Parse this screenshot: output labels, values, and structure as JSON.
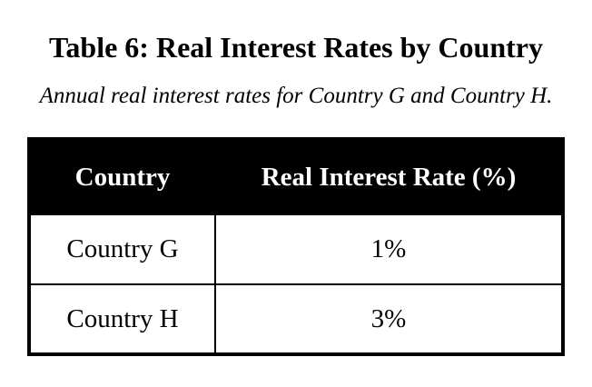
{
  "document": {
    "title": "Table 6: Real Interest Rates by Country",
    "subtitle": "Annual real interest rates for Country G and Country H."
  },
  "table": {
    "headers": [
      "Country",
      "Real Interest Rate (%)"
    ],
    "rows": [
      [
        "Country G",
        "1%"
      ],
      [
        "Country H",
        "3%"
      ]
    ]
  },
  "colors": {
    "background": "#ffffff",
    "text": "#000000",
    "header_background": "#000000",
    "header_text": "#ffffff",
    "border": "#000000"
  },
  "chart_data": {
    "type": "table",
    "title": "Table 6: Real Interest Rates by Country",
    "subtitle": "Annual real interest rates for Country G and Country H.",
    "columns": [
      "Country",
      "Real Interest Rate (%)"
    ],
    "rows": [
      [
        "Country G",
        "1%"
      ],
      [
        "Country H",
        "3%"
      ]
    ],
    "values": {
      "Country G": 1,
      "Country H": 3
    }
  }
}
